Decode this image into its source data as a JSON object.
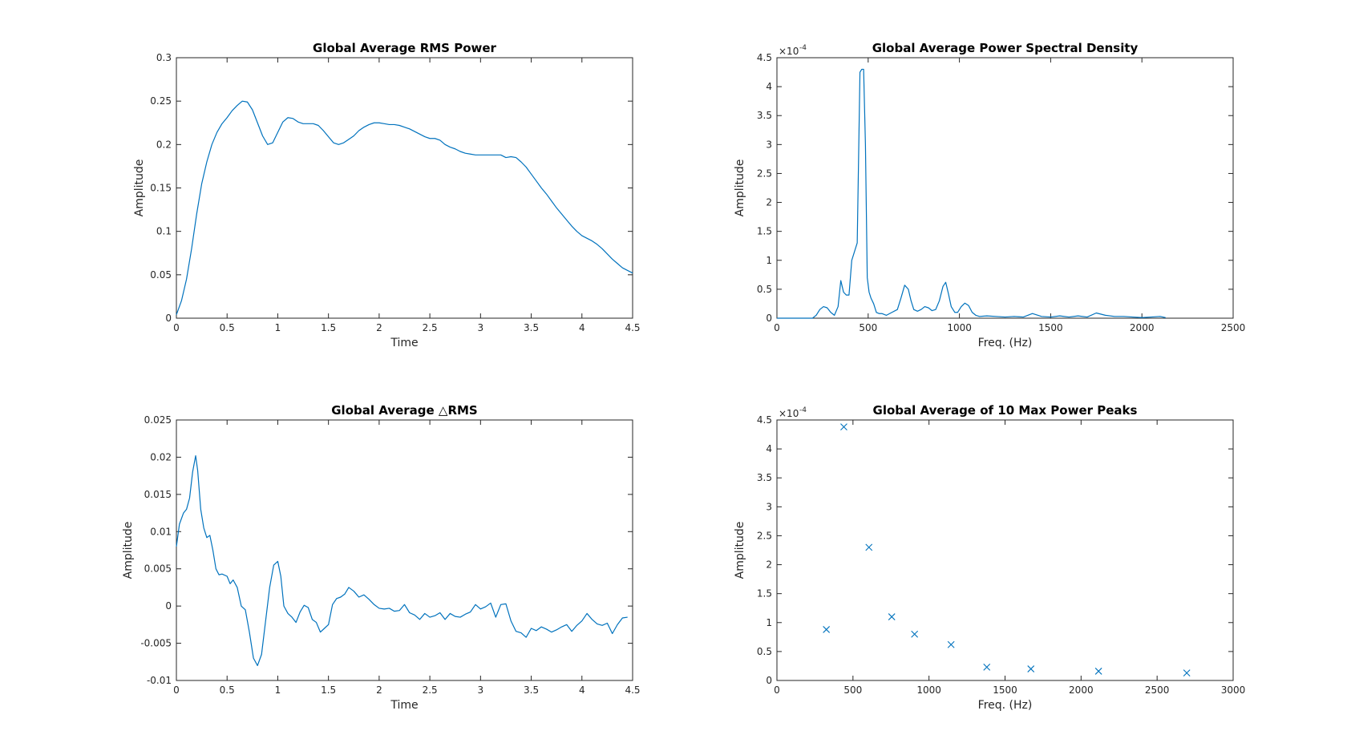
{
  "figure": {
    "background": "#ffffff",
    "axis_color": "#262626",
    "line_color": "#0072bd"
  },
  "chart_data": [
    {
      "id": "rms",
      "type": "line",
      "title": "Global Average RMS Power",
      "xlabel": "Time",
      "ylabel": "Amplitude",
      "xlim": [
        0,
        4.5
      ],
      "ylim": [
        0,
        0.3
      ],
      "xticks": [
        0,
        0.5,
        1,
        1.5,
        2,
        2.5,
        3,
        3.5,
        4,
        4.5
      ],
      "xtick_labels": [
        "0",
        "0.5",
        "1",
        "1.5",
        "2",
        "2.5",
        "3",
        "3.5",
        "4",
        "4.5"
      ],
      "yticks": [
        0,
        0.05,
        0.1,
        0.15,
        0.2,
        0.25,
        0.3
      ],
      "ytick_labels": [
        "0",
        "0.05",
        "0.1",
        "0.15",
        "0.2",
        "0.25",
        "0.3"
      ],
      "exponent_label": "",
      "grid": false,
      "series": [
        {
          "marker": "none",
          "x": [
            0,
            0.05,
            0.1,
            0.15,
            0.2,
            0.25,
            0.3,
            0.35,
            0.4,
            0.45,
            0.5,
            0.55,
            0.6,
            0.65,
            0.7,
            0.75,
            0.8,
            0.85,
            0.9,
            0.95,
            1.0,
            1.05,
            1.1,
            1.15,
            1.2,
            1.25,
            1.3,
            1.35,
            1.4,
            1.45,
            1.5,
            1.55,
            1.6,
            1.65,
            1.7,
            1.75,
            1.8,
            1.85,
            1.9,
            1.95,
            2.0,
            2.05,
            2.1,
            2.15,
            2.2,
            2.25,
            2.3,
            2.35,
            2.4,
            2.45,
            2.5,
            2.55,
            2.6,
            2.65,
            2.7,
            2.75,
            2.8,
            2.85,
            2.9,
            2.95,
            3.0,
            3.05,
            3.1,
            3.15,
            3.2,
            3.25,
            3.3,
            3.35,
            3.4,
            3.45,
            3.5,
            3.55,
            3.6,
            3.65,
            3.7,
            3.75,
            3.8,
            3.85,
            3.9,
            3.95,
            4.0,
            4.05,
            4.1,
            4.15,
            4.2,
            4.25,
            4.3,
            4.35,
            4.4,
            4.45,
            4.5
          ],
          "y": [
            0.004,
            0.02,
            0.045,
            0.08,
            0.12,
            0.155,
            0.18,
            0.2,
            0.214,
            0.224,
            0.231,
            0.239,
            0.245,
            0.25,
            0.249,
            0.24,
            0.225,
            0.21,
            0.2,
            0.202,
            0.214,
            0.226,
            0.231,
            0.23,
            0.226,
            0.224,
            0.224,
            0.224,
            0.222,
            0.216,
            0.209,
            0.202,
            0.2,
            0.202,
            0.206,
            0.21,
            0.216,
            0.22,
            0.223,
            0.225,
            0.225,
            0.224,
            0.223,
            0.223,
            0.222,
            0.22,
            0.218,
            0.215,
            0.212,
            0.209,
            0.207,
            0.207,
            0.205,
            0.2,
            0.197,
            0.195,
            0.192,
            0.19,
            0.189,
            0.188,
            0.188,
            0.188,
            0.188,
            0.188,
            0.188,
            0.185,
            0.186,
            0.185,
            0.18,
            0.174,
            0.166,
            0.158,
            0.15,
            0.143,
            0.135,
            0.127,
            0.12,
            0.113,
            0.106,
            0.1,
            0.095,
            0.092,
            0.089,
            0.085,
            0.08,
            0.074,
            0.068,
            0.063,
            0.058,
            0.055,
            0.052
          ]
        }
      ]
    },
    {
      "id": "psd",
      "type": "line",
      "title": "Global Average Power Spectral Density",
      "xlabel": "Freq. (Hz)",
      "ylabel": "Amplitude",
      "xlim": [
        0,
        2500
      ],
      "ylim": [
        0,
        4.5
      ],
      "xticks": [
        0,
        500,
        1000,
        1500,
        2000,
        2500
      ],
      "xtick_labels": [
        "0",
        "500",
        "1000",
        "1500",
        "2000",
        "2500"
      ],
      "yticks": [
        0,
        0.5,
        1,
        1.5,
        2,
        2.5,
        3,
        3.5,
        4,
        4.5
      ],
      "ytick_labels": [
        "0",
        "0.5",
        "1",
        "1.5",
        "2",
        "2.5",
        "3",
        "3.5",
        "4",
        "4.5"
      ],
      "exponent_label": "×10",
      "exponent_power": "-4",
      "grid": false,
      "series": [
        {
          "marker": "none",
          "x": [
            0,
            100,
            150,
            195,
            215,
            235,
            255,
            275,
            295,
            315,
            335,
            350,
            365,
            380,
            395,
            410,
            425,
            440,
            455,
            465,
            475,
            485,
            495,
            505,
            515,
            530,
            545,
            560,
            575,
            600,
            630,
            660,
            680,
            700,
            720,
            735,
            750,
            770,
            790,
            810,
            830,
            850,
            870,
            890,
            910,
            925,
            940,
            955,
            975,
            990,
            1010,
            1030,
            1050,
            1070,
            1090,
            1110,
            1150,
            1200,
            1250,
            1300,
            1350,
            1400,
            1450,
            1500,
            1550,
            1600,
            1650,
            1700,
            1750,
            1800,
            1850,
            1900,
            1950,
            2000,
            2050,
            2100,
            2130
          ],
          "y": [
            0,
            0,
            0,
            0,
            0.05,
            0.15,
            0.2,
            0.18,
            0.1,
            0.05,
            0.2,
            0.65,
            0.45,
            0.4,
            0.4,
            1.0,
            1.15,
            1.3,
            4.25,
            4.3,
            4.3,
            3.0,
            0.7,
            0.45,
            0.35,
            0.25,
            0.1,
            0.08,
            0.08,
            0.05,
            0.1,
            0.15,
            0.35,
            0.57,
            0.5,
            0.3,
            0.15,
            0.12,
            0.15,
            0.2,
            0.18,
            0.13,
            0.15,
            0.3,
            0.55,
            0.62,
            0.42,
            0.2,
            0.1,
            0.1,
            0.2,
            0.26,
            0.22,
            0.1,
            0.05,
            0.03,
            0.04,
            0.03,
            0.02,
            0.03,
            0.02,
            0.08,
            0.03,
            0.02,
            0.04,
            0.02,
            0.04,
            0.02,
            0.09,
            0.05,
            0.03,
            0.03,
            0.02,
            0.01,
            0.02,
            0.03,
            0.01
          ]
        }
      ]
    },
    {
      "id": "drms",
      "type": "line",
      "title": "Global Average △RMS",
      "xlabel": "Time",
      "ylabel": "Amplitude",
      "xlim": [
        0,
        4.5
      ],
      "ylim": [
        -0.01,
        0.025
      ],
      "xticks": [
        0,
        0.5,
        1,
        1.5,
        2,
        2.5,
        3,
        3.5,
        4,
        4.5
      ],
      "xtick_labels": [
        "0",
        "0.5",
        "1",
        "1.5",
        "2",
        "2.5",
        "3",
        "3.5",
        "4",
        "4.5"
      ],
      "yticks": [
        -0.01,
        -0.005,
        0,
        0.005,
        0.01,
        0.015,
        0.02,
        0.025
      ],
      "ytick_labels": [
        "-0.01",
        "-0.005",
        "0",
        "0.005",
        "0.01",
        "0.015",
        "0.02",
        "0.025"
      ],
      "exponent_label": "",
      "grid": false,
      "series": [
        {
          "marker": "none",
          "x": [
            0,
            0.03,
            0.07,
            0.1,
            0.13,
            0.16,
            0.19,
            0.21,
            0.24,
            0.27,
            0.3,
            0.33,
            0.36,
            0.39,
            0.42,
            0.45,
            0.5,
            0.53,
            0.56,
            0.6,
            0.64,
            0.68,
            0.72,
            0.76,
            0.8,
            0.84,
            0.88,
            0.92,
            0.96,
            1.0,
            1.03,
            1.06,
            1.1,
            1.14,
            1.18,
            1.22,
            1.26,
            1.3,
            1.34,
            1.38,
            1.42,
            1.46,
            1.5,
            1.54,
            1.58,
            1.62,
            1.66,
            1.7,
            1.75,
            1.8,
            1.85,
            1.9,
            1.95,
            2.0,
            2.05,
            2.1,
            2.15,
            2.2,
            2.25,
            2.3,
            2.35,
            2.4,
            2.45,
            2.5,
            2.55,
            2.6,
            2.65,
            2.7,
            2.75,
            2.8,
            2.85,
            2.9,
            2.95,
            3.0,
            3.05,
            3.1,
            3.15,
            3.2,
            3.25,
            3.3,
            3.35,
            3.4,
            3.45,
            3.5,
            3.55,
            3.6,
            3.65,
            3.7,
            3.75,
            3.8,
            3.85,
            3.9,
            3.95,
            4.0,
            4.05,
            4.1,
            4.15,
            4.2,
            4.25,
            4.3,
            4.35,
            4.4,
            4.45
          ],
          "y": [
            0.008,
            0.011,
            0.0125,
            0.013,
            0.0145,
            0.018,
            0.0202,
            0.0182,
            0.013,
            0.0105,
            0.0092,
            0.0095,
            0.0075,
            0.005,
            0.0042,
            0.0043,
            0.004,
            0.003,
            0.0035,
            0.0025,
            0.0,
            -0.0005,
            -0.0035,
            -0.007,
            -0.008,
            -0.0065,
            -0.002,
            0.0025,
            0.0055,
            0.006,
            0.004,
            0.0,
            -0.001,
            -0.0015,
            -0.0022,
            -0.0008,
            0.0001,
            -0.0002,
            -0.0018,
            -0.0022,
            -0.0035,
            -0.003,
            -0.0025,
            0.0002,
            0.001,
            0.0012,
            0.0016,
            0.0025,
            0.002,
            0.0012,
            0.0015,
            0.0009,
            0.0002,
            -0.0003,
            -0.0004,
            -0.0003,
            -0.0007,
            -0.0006,
            0.0002,
            -0.0009,
            -0.0012,
            -0.0018,
            -0.001,
            -0.0015,
            -0.0013,
            -0.0009,
            -0.0018,
            -0.001,
            -0.0014,
            -0.0015,
            -0.0011,
            -0.0008,
            0.0002,
            -0.0004,
            -0.0001,
            0.0004,
            -0.0015,
            0.0002,
            0.0003,
            -0.002,
            -0.0034,
            -0.0036,
            -0.0042,
            -0.003,
            -0.0033,
            -0.0028,
            -0.0031,
            -0.0035,
            -0.0032,
            -0.0028,
            -0.0025,
            -0.0034,
            -0.0026,
            -0.002,
            -0.001,
            -0.0018,
            -0.0024,
            -0.0026,
            -0.0023,
            -0.0037,
            -0.0025,
            -0.0016,
            -0.0015
          ]
        }
      ]
    },
    {
      "id": "peaks",
      "type": "scatter",
      "title": "Global Average of 10 Max Power Peaks",
      "xlabel": "Freq. (Hz)",
      "ylabel": "Amplitude",
      "xlim": [
        0,
        3000
      ],
      "ylim": [
        0,
        4.5
      ],
      "xticks": [
        0,
        500,
        1000,
        1500,
        2000,
        2500,
        3000
      ],
      "xtick_labels": [
        "0",
        "500",
        "1000",
        "1500",
        "2000",
        "2500",
        "3000"
      ],
      "yticks": [
        0,
        0.5,
        1,
        1.5,
        2,
        2.5,
        3,
        3.5,
        4,
        4.5
      ],
      "ytick_labels": [
        "0",
        "0.5",
        "1",
        "1.5",
        "2",
        "2.5",
        "3",
        "3.5",
        "4",
        "4.5"
      ],
      "exponent_label": "×10",
      "exponent_power": "-4",
      "grid": false,
      "series": [
        {
          "marker": "x",
          "x": [
            325,
            440,
            605,
            755,
            905,
            1145,
            1380,
            1670,
            2115,
            2695
          ],
          "y": [
            0.88,
            4.38,
            2.3,
            1.1,
            0.8,
            0.62,
            0.23,
            0.2,
            0.16,
            0.13
          ]
        }
      ]
    }
  ]
}
